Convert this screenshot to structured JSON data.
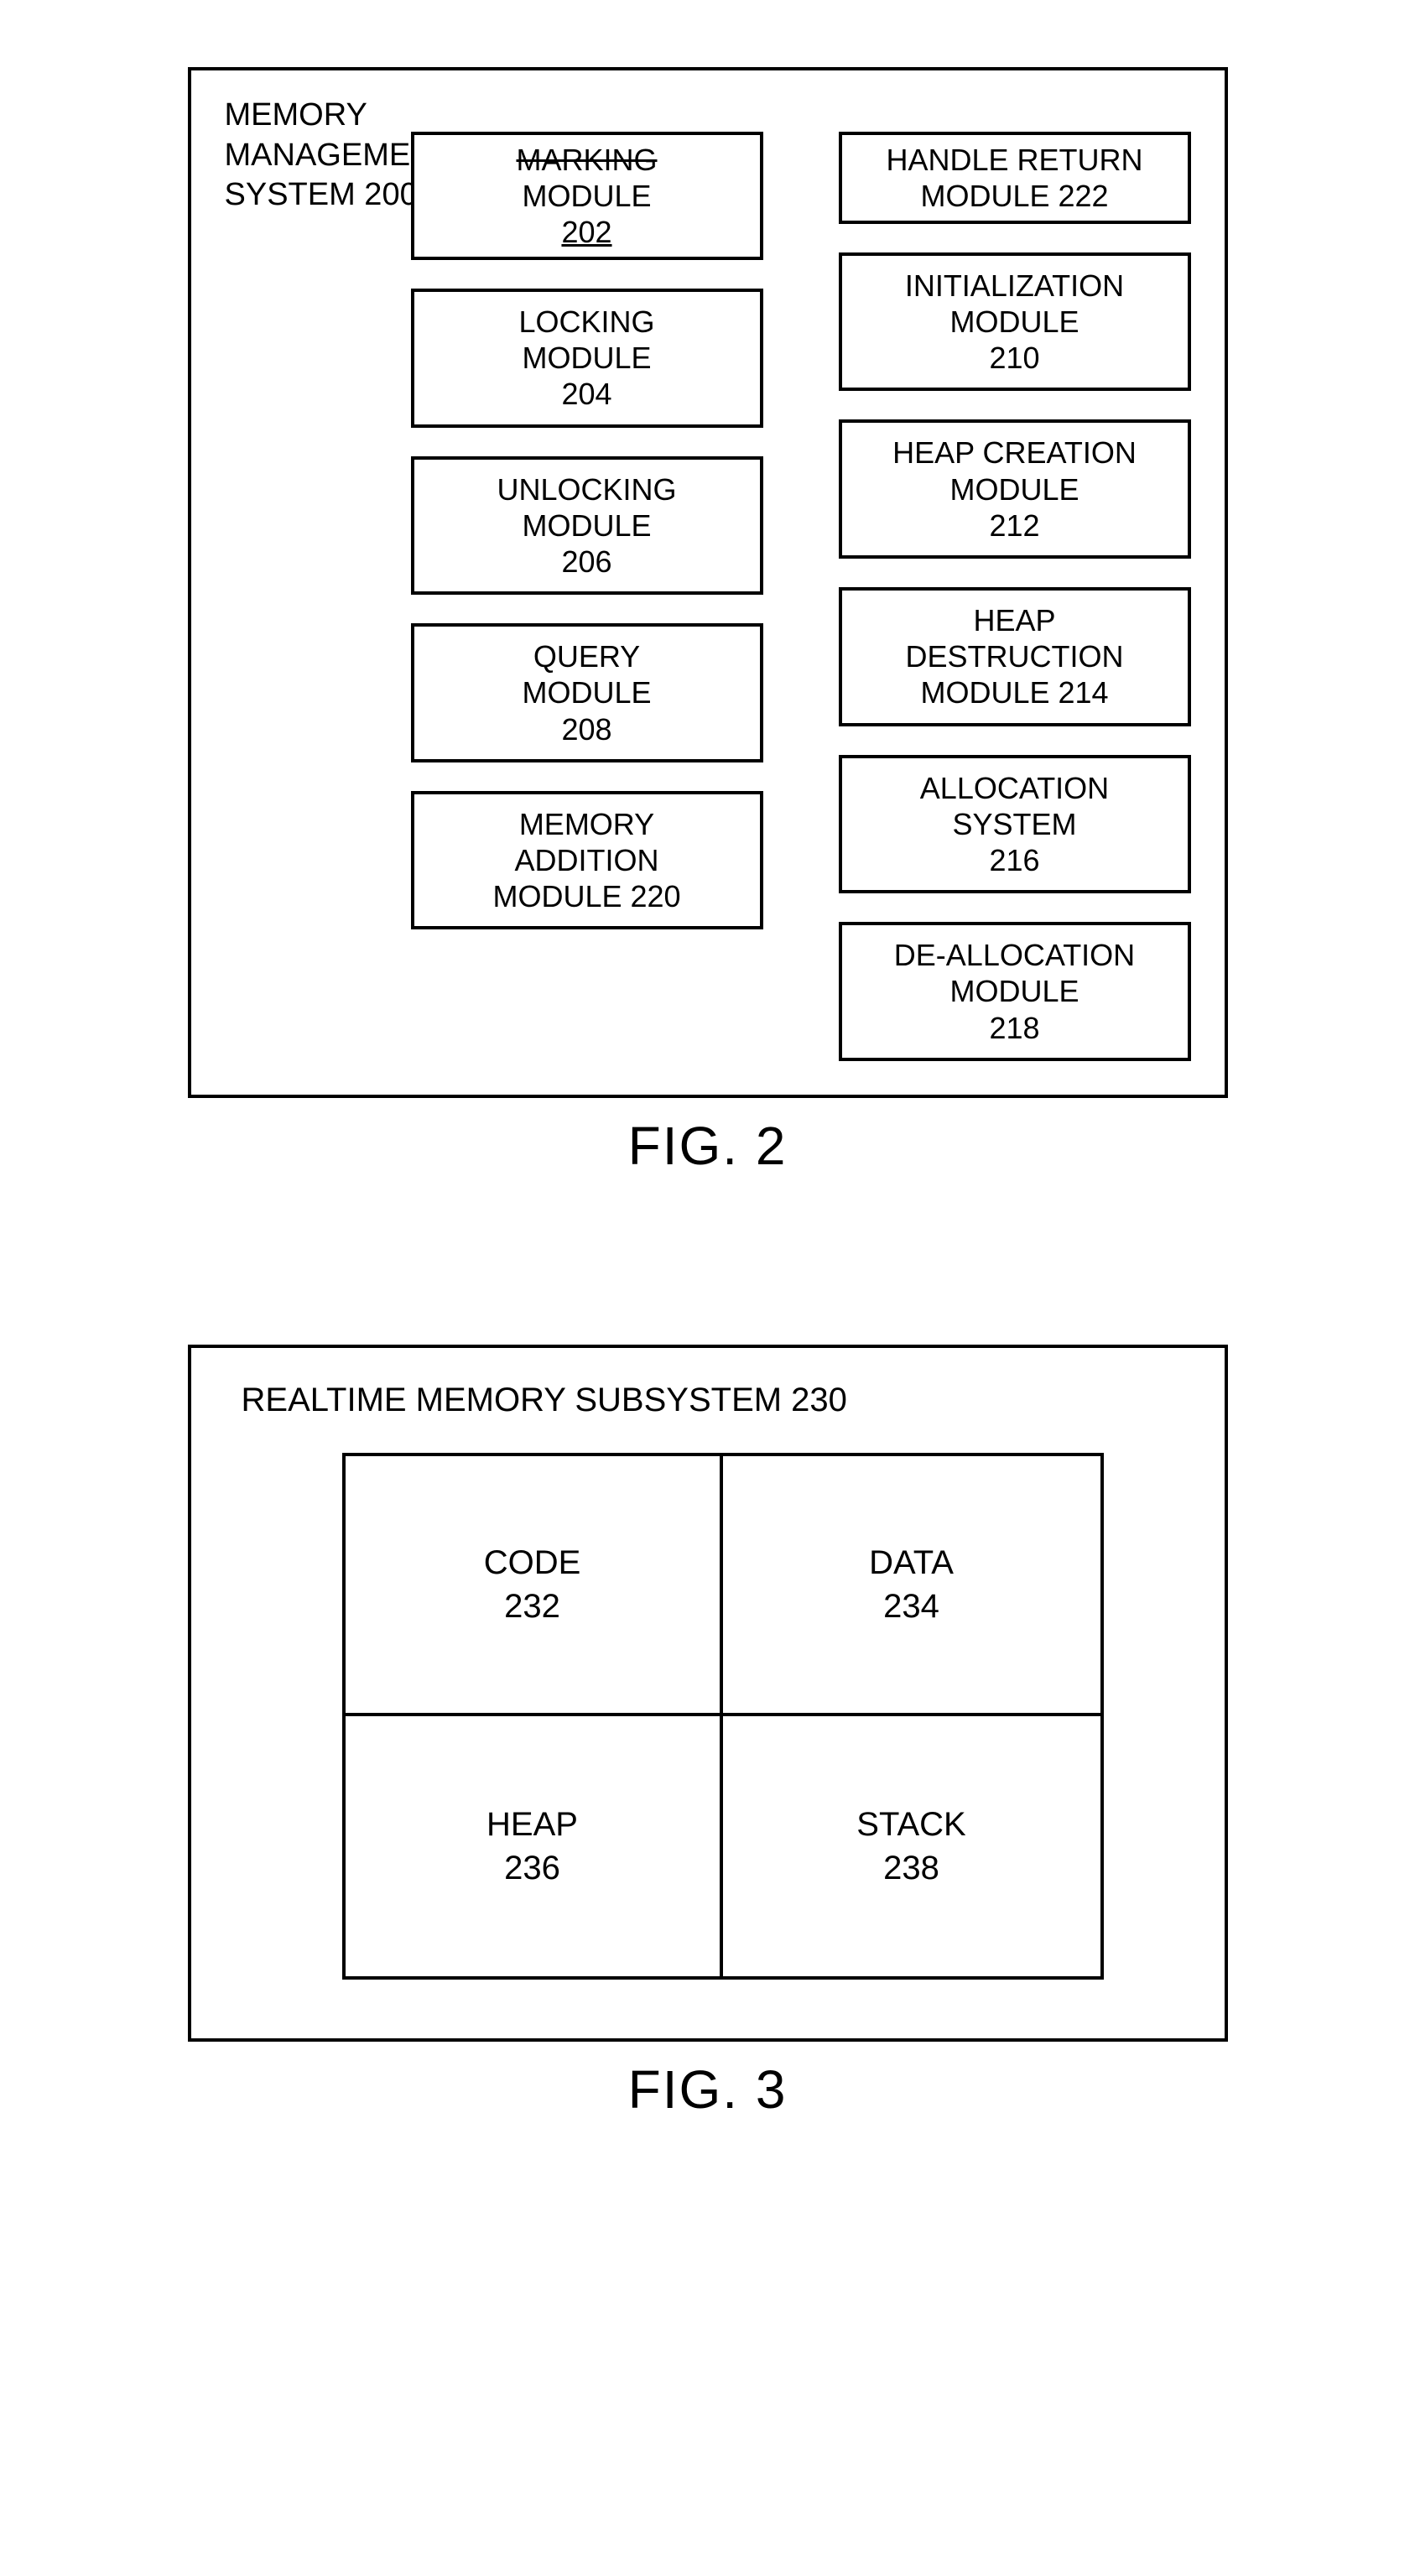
{
  "fig2": {
    "title_line1": "MEMORY",
    "title_line2": "MANAGEMENT",
    "title_line3": "SYSTEM 200",
    "left_col": [
      {
        "l1": "MARKING",
        "l2": "MODULE",
        "l3": "202",
        "strike_l1": true,
        "underline_l3": true,
        "short": true
      },
      {
        "l1": "LOCKING",
        "l2": "MODULE",
        "l3": "204"
      },
      {
        "l1": "UNLOCKING",
        "l2": "MODULE",
        "l3": "206"
      },
      {
        "l1": "QUERY",
        "l2": "MODULE",
        "l3": "208"
      },
      {
        "l1": "MEMORY",
        "l2": "ADDITION",
        "l3": "MODULE 220"
      }
    ],
    "right_col": [
      {
        "l1": "HANDLE RETURN",
        "l2": "MODULE 222",
        "short": true
      },
      {
        "l1": "INITIALIZATION",
        "l2": "MODULE",
        "l3": "210"
      },
      {
        "l1": "HEAP CREATION",
        "l2": "MODULE",
        "l3": "212"
      },
      {
        "l1": "HEAP",
        "l2": "DESTRUCTION",
        "l3": "MODULE 214"
      },
      {
        "l1": "ALLOCATION",
        "l2": "SYSTEM",
        "l3": "216"
      },
      {
        "l1": "DE-ALLOCATION",
        "l2": "MODULE",
        "l3": "218"
      }
    ],
    "caption": "FIG. 2"
  },
  "fig3": {
    "title": "REALTIME MEMORY SUBSYSTEM 230",
    "cells": [
      {
        "l1": "CODE",
        "l2": "232"
      },
      {
        "l1": "DATA",
        "l2": "234"
      },
      {
        "l1": "HEAP",
        "l2": "236"
      },
      {
        "l1": "STACK",
        "l2": "238"
      }
    ],
    "caption": "FIG. 3"
  },
  "colors": {
    "stroke": "#000000",
    "background": "#ffffff"
  }
}
